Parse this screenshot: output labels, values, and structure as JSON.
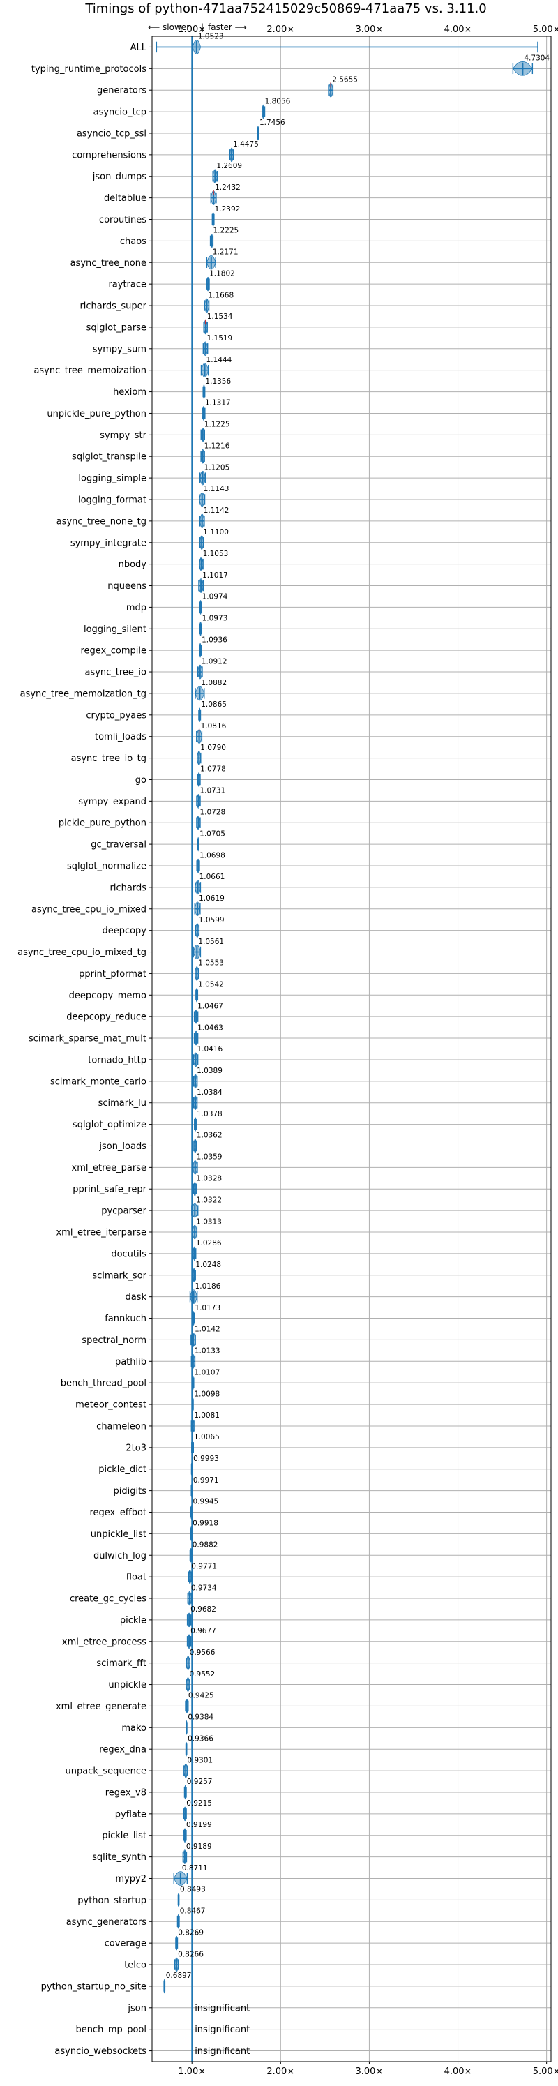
{
  "chart_data": {
    "type": "violin",
    "title": "Timings of python-471aa752415029c50869-471aa75 vs. 3.11.0",
    "direction_hint": {
      "slower_label": "⟵ slower",
      "separator": "|",
      "faster_label": "faster ⟶"
    },
    "x_axis": {
      "scale": "linear",
      "range": [
        0.55,
        5.05
      ],
      "ticks": [
        1.0,
        2.0,
        3.0,
        4.0,
        5.0
      ],
      "tick_labels": [
        "1.00×",
        "2.00×",
        "3.00×",
        "4.00×",
        "5.00×"
      ],
      "grid": true,
      "position": "top-and-bottom"
    },
    "baseline": 1.0,
    "colors": {
      "violin": "#1f77b4",
      "baseline": "#1f77b4",
      "highlight": "#d62728",
      "grid": "#b0b0b0"
    },
    "insignificant_label": "insignificant",
    "benchmarks": [
      {
        "name": "ALL",
        "value": 1.0523,
        "min": 0.6,
        "max": 4.9,
        "spread": 0.09
      },
      {
        "name": "typing_runtime_protocols",
        "value": 4.7304,
        "spread": 0.22
      },
      {
        "name": "generators",
        "value": 2.5655,
        "spread": 0.05,
        "highlight": true
      },
      {
        "name": "asyncio_tcp",
        "value": 1.8056,
        "spread": 0.03
      },
      {
        "name": "asyncio_tcp_ssl",
        "value": 1.7456,
        "spread": 0.02
      },
      {
        "name": "comprehensions",
        "value": 1.4475,
        "spread": 0.04
      },
      {
        "name": "json_dumps",
        "value": 1.2609,
        "spread": 0.05
      },
      {
        "name": "deltablue",
        "value": 1.2432,
        "spread": 0.06,
        "highlight": true
      },
      {
        "name": "coroutines",
        "value": 1.2392,
        "spread": 0.02
      },
      {
        "name": "chaos",
        "value": 1.2225,
        "spread": 0.03
      },
      {
        "name": "async_tree_none",
        "value": 1.2171,
        "spread": 0.1
      },
      {
        "name": "raytrace",
        "value": 1.1802,
        "spread": 0.03
      },
      {
        "name": "richards_super",
        "value": 1.1668,
        "spread": 0.05
      },
      {
        "name": "sqlglot_parse",
        "value": 1.1534,
        "spread": 0.04,
        "highlight": true
      },
      {
        "name": "sympy_sum",
        "value": 1.1519,
        "spread": 0.05
      },
      {
        "name": "async_tree_memoization",
        "value": 1.1444,
        "spread": 0.08
      },
      {
        "name": "hexiom",
        "value": 1.1356,
        "spread": 0.02
      },
      {
        "name": "unpickle_pure_python",
        "value": 1.1317,
        "spread": 0.03
      },
      {
        "name": "sympy_str",
        "value": 1.1225,
        "spread": 0.04
      },
      {
        "name": "sqlglot_transpile",
        "value": 1.1216,
        "spread": 0.04
      },
      {
        "name": "logging_simple",
        "value": 1.1205,
        "spread": 0.06
      },
      {
        "name": "logging_format",
        "value": 1.1143,
        "spread": 0.06
      },
      {
        "name": "async_tree_none_tg",
        "value": 1.1142,
        "spread": 0.05
      },
      {
        "name": "sympy_integrate",
        "value": 1.11,
        "spread": 0.04
      },
      {
        "name": "nbody",
        "value": 1.1053,
        "spread": 0.04
      },
      {
        "name": "nqueens",
        "value": 1.1017,
        "spread": 0.05
      },
      {
        "name": "mdp",
        "value": 1.0974,
        "spread": 0.02
      },
      {
        "name": "logging_silent",
        "value": 1.0973,
        "spread": 0.02
      },
      {
        "name": "regex_compile",
        "value": 1.0936,
        "spread": 0.02
      },
      {
        "name": "async_tree_io",
        "value": 1.0912,
        "spread": 0.05
      },
      {
        "name": "async_tree_memoization_tg",
        "value": 1.0882,
        "spread": 0.1
      },
      {
        "name": "crypto_pyaes",
        "value": 1.0865,
        "spread": 0.02
      },
      {
        "name": "tomli_loads",
        "value": 1.0816,
        "spread": 0.06,
        "highlight": true
      },
      {
        "name": "async_tree_io_tg",
        "value": 1.079,
        "spread": 0.04
      },
      {
        "name": "go",
        "value": 1.0778,
        "spread": 0.03
      },
      {
        "name": "sympy_expand",
        "value": 1.0731,
        "spread": 0.04
      },
      {
        "name": "pickle_pure_python",
        "value": 1.0728,
        "spread": 0.04
      },
      {
        "name": "gc_traversal",
        "value": 1.0705,
        "spread": 0.01
      },
      {
        "name": "sqlglot_normalize",
        "value": 1.0698,
        "spread": 0.03
      },
      {
        "name": "richards",
        "value": 1.0661,
        "spread": 0.06
      },
      {
        "name": "async_tree_cpu_io_mixed",
        "value": 1.0619,
        "spread": 0.06
      },
      {
        "name": "deepcopy",
        "value": 1.0599,
        "spread": 0.04
      },
      {
        "name": "async_tree_cpu_io_mixed_tg",
        "value": 1.0561,
        "spread": 0.08
      },
      {
        "name": "pprint_pformat",
        "value": 1.0553,
        "spread": 0.04
      },
      {
        "name": "deepcopy_memo",
        "value": 1.0542,
        "spread": 0.02
      },
      {
        "name": "deepcopy_reduce",
        "value": 1.0467,
        "spread": 0.04
      },
      {
        "name": "scimark_sparse_mat_mult",
        "value": 1.0463,
        "spread": 0.04
      },
      {
        "name": "tornado_http",
        "value": 1.0416,
        "spread": 0.05
      },
      {
        "name": "scimark_monte_carlo",
        "value": 1.0389,
        "spread": 0.04
      },
      {
        "name": "scimark_lu",
        "value": 1.0384,
        "spread": 0.04
      },
      {
        "name": "sqlglot_optimize",
        "value": 1.0378,
        "spread": 0.02
      },
      {
        "name": "json_loads",
        "value": 1.0362,
        "spread": 0.03
      },
      {
        "name": "xml_etree_parse",
        "value": 1.0359,
        "spread": 0.05
      },
      {
        "name": "pprint_safe_repr",
        "value": 1.0328,
        "spread": 0.03
      },
      {
        "name": "pycparser",
        "value": 1.0322,
        "spread": 0.07
      },
      {
        "name": "xml_etree_iterparse",
        "value": 1.0313,
        "spread": 0.05
      },
      {
        "name": "docutils",
        "value": 1.0286,
        "spread": 0.03
      },
      {
        "name": "scimark_sor",
        "value": 1.0248,
        "spread": 0.03
      },
      {
        "name": "dask",
        "value": 1.0186,
        "spread": 0.08
      },
      {
        "name": "fannkuch",
        "value": 1.0173,
        "spread": 0.02
      },
      {
        "name": "spectral_norm",
        "value": 1.0142,
        "spread": 0.05
      },
      {
        "name": "pathlib",
        "value": 1.0133,
        "spread": 0.04
      },
      {
        "name": "bench_thread_pool",
        "value": 1.0107,
        "spread": 0.02
      },
      {
        "name": "meteor_contest",
        "value": 1.0098,
        "spread": 0.01
      },
      {
        "name": "chameleon",
        "value": 1.0081,
        "spread": 0.03
      },
      {
        "name": "2to3",
        "value": 1.0065,
        "spread": 0.02
      },
      {
        "name": "pickle_dict",
        "value": 0.9993,
        "spread": 0.01
      },
      {
        "name": "pidigits",
        "value": 0.9971,
        "spread": 0.01
      },
      {
        "name": "regex_effbot",
        "value": 0.9945,
        "spread": 0.02
      },
      {
        "name": "unpickle_list",
        "value": 0.9918,
        "spread": 0.02
      },
      {
        "name": "dulwich_log",
        "value": 0.9882,
        "spread": 0.02
      },
      {
        "name": "float",
        "value": 0.9771,
        "spread": 0.03
      },
      {
        "name": "create_gc_cycles",
        "value": 0.9734,
        "spread": 0.04
      },
      {
        "name": "pickle",
        "value": 0.9682,
        "spread": 0.04
      },
      {
        "name": "xml_etree_process",
        "value": 0.9677,
        "spread": 0.04
      },
      {
        "name": "scimark_fft",
        "value": 0.9566,
        "spread": 0.04
      },
      {
        "name": "unpickle",
        "value": 0.9552,
        "spread": 0.04
      },
      {
        "name": "xml_etree_generate",
        "value": 0.9425,
        "spread": 0.03
      },
      {
        "name": "mako",
        "value": 0.9384,
        "spread": 0.01
      },
      {
        "name": "regex_dna",
        "value": 0.9366,
        "spread": 0.01
      },
      {
        "name": "unpack_sequence",
        "value": 0.9301,
        "spread": 0.04
      },
      {
        "name": "regex_v8",
        "value": 0.9257,
        "spread": 0.02
      },
      {
        "name": "pyflate",
        "value": 0.9215,
        "spread": 0.03
      },
      {
        "name": "pickle_list",
        "value": 0.9199,
        "spread": 0.03
      },
      {
        "name": "sqlite_synth",
        "value": 0.9189,
        "spread": 0.04
      },
      {
        "name": "mypy2",
        "value": 0.8711,
        "spread": 0.15
      },
      {
        "name": "python_startup",
        "value": 0.8493,
        "spread": 0.01
      },
      {
        "name": "async_generators",
        "value": 0.8467,
        "spread": 0.02
      },
      {
        "name": "coverage",
        "value": 0.8269,
        "spread": 0.02
      },
      {
        "name": "telco",
        "value": 0.8266,
        "spread": 0.04
      },
      {
        "name": "python_startup_no_site",
        "value": 0.6897,
        "spread": 0.01
      },
      {
        "name": "json",
        "value": null,
        "insignificant": true
      },
      {
        "name": "bench_mp_pool",
        "value": null,
        "insignificant": true
      },
      {
        "name": "asyncio_websockets",
        "value": null,
        "insignificant": true
      }
    ]
  }
}
